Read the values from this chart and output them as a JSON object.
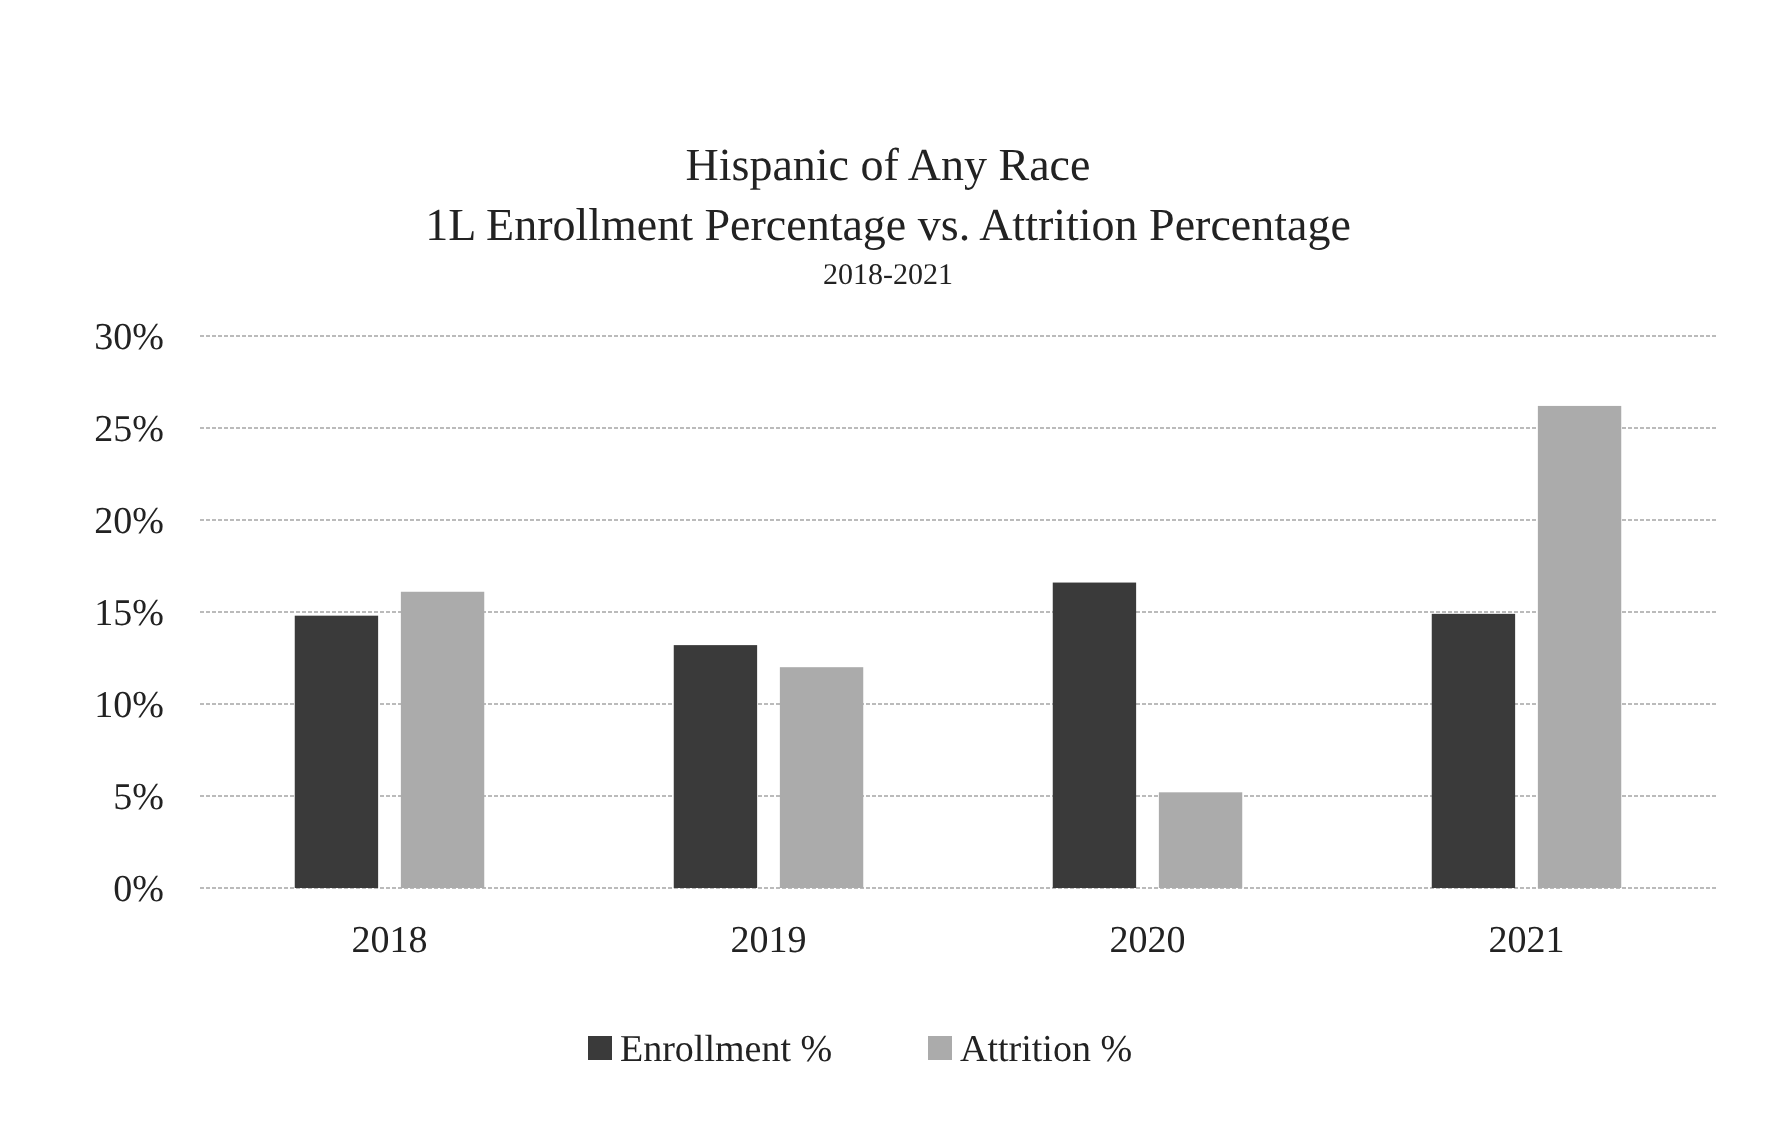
{
  "chart_data": {
    "type": "bar",
    "title": "Hispanic of Any Race\n1L Enrollment Percentage vs. Attrition Percentage",
    "subtitle": "2018-2021",
    "categories": [
      "2018",
      "2019",
      "2020",
      "2021"
    ],
    "series": [
      {
        "name": "Enrollment %",
        "color": "#3a3a3a",
        "values": [
          14.8,
          13.2,
          16.6,
          14.9
        ]
      },
      {
        "name": "Attrition %",
        "color": "#ababab",
        "values": [
          16.1,
          12.0,
          5.2,
          26.2
        ]
      }
    ],
    "ylim": [
      0,
      30
    ],
    "yticks": [
      {
        "value": 0,
        "label": "0%"
      },
      {
        "value": 5,
        "label": "5%"
      },
      {
        "value": 10,
        "label": "10%"
      },
      {
        "value": 15,
        "label": "15%"
      },
      {
        "value": 20,
        "label": "20%"
      },
      {
        "value": 25,
        "label": "25%"
      },
      {
        "value": 30,
        "label": "30%"
      }
    ],
    "grid": "y",
    "legend": "bottom"
  }
}
